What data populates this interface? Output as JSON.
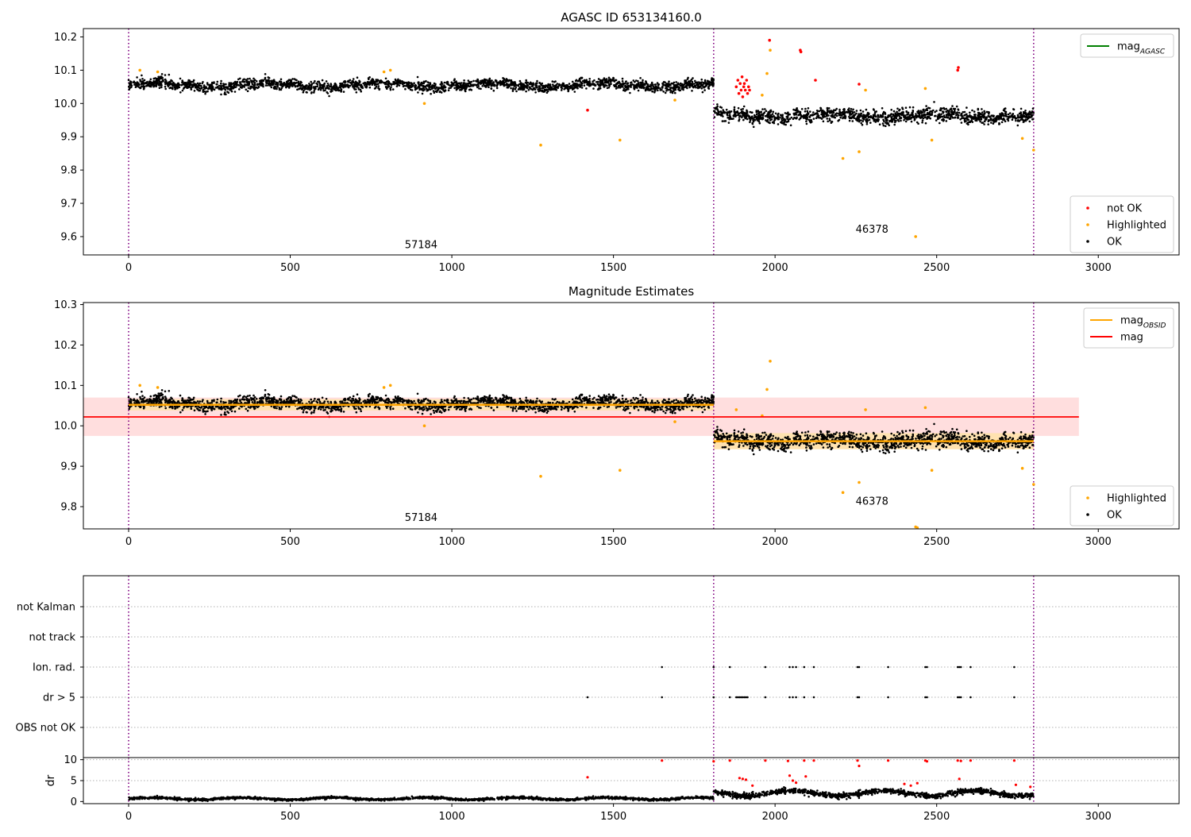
{
  "chart_data": [
    {
      "id": "agasc",
      "type": "scatter",
      "title": "AGASC ID 653134160.0",
      "xlim": [
        -140,
        3250
      ],
      "ylim": [
        9.545,
        10.225
      ],
      "xticks": [
        0,
        500,
        1000,
        1500,
        2000,
        2500,
        3000
      ],
      "yticks": [
        9.6,
        9.7,
        9.8,
        9.9,
        10.0,
        10.1,
        10.2
      ],
      "ytick_labels": [
        "9.6",
        "9.7",
        "9.8",
        "9.9",
        "10.0",
        "10.1",
        "10.2"
      ],
      "obs_boundaries": [
        0,
        1810,
        2800
      ],
      "obs_labels": [
        {
          "text": "57184",
          "x": 905,
          "y": 9.565
        },
        {
          "text": "46378",
          "x": 2300,
          "y": 9.612
        }
      ],
      "segments": [
        {
          "x0": 0,
          "x1": 1810,
          "mean": 10.055,
          "noise": 0.014
        },
        {
          "x0": 1810,
          "x1": 2800,
          "mean": 9.963,
          "noise": 0.018
        }
      ],
      "series": [
        {
          "name": "not OK",
          "color": "#ff0000",
          "points": [
            [
              1880,
              10.05
            ],
            [
              1885,
              10.07
            ],
            [
              1888,
              10.03
            ],
            [
              1892,
              10.06
            ],
            [
              1895,
              10.04
            ],
            [
              1898,
              10.08
            ],
            [
              1900,
              10.02
            ],
            [
              1903,
              10.05
            ],
            [
              1905,
              10.06
            ],
            [
              1908,
              10.04
            ],
            [
              1912,
              10.07
            ],
            [
              1915,
              10.03
            ],
            [
              1918,
              10.05
            ],
            [
              1921,
              10.04
            ],
            [
              1983,
              10.19
            ],
            [
              2078,
              10.16
            ],
            [
              2080,
              10.155
            ],
            [
              2125,
              10.07
            ],
            [
              2260,
              10.058
            ],
            [
              2565,
              10.1
            ],
            [
              2567,
              10.108
            ],
            [
              1420,
              9.98
            ]
          ]
        },
        {
          "name": "Highlighted",
          "color": "#ffa500",
          "points": [
            [
              35,
              10.1
            ],
            [
              90,
              10.095
            ],
            [
              790,
              10.095
            ],
            [
              810,
              10.1
            ],
            [
              915,
              10.0
            ],
            [
              1275,
              9.875
            ],
            [
              1520,
              9.89
            ],
            [
              1690,
              10.01
            ],
            [
              1960,
              10.025
            ],
            [
              1975,
              10.09
            ],
            [
              1985,
              10.16
            ],
            [
              2210,
              9.835
            ],
            [
              2260,
              9.855
            ],
            [
              2280,
              10.04
            ],
            [
              2435,
              9.6
            ],
            [
              2465,
              10.045
            ],
            [
              2485,
              9.89
            ],
            [
              2765,
              9.895
            ],
            [
              2800,
              9.86
            ]
          ]
        }
      ],
      "legends": [
        {
          "position": "upper right",
          "entries": [
            {
              "label": "mag",
              "subscript": "AGASC",
              "color": "#008000",
              "marker": "line"
            }
          ]
        },
        {
          "position": "lower right",
          "entries": [
            {
              "label": "not OK",
              "color": "#ff0000",
              "marker": "dot"
            },
            {
              "label": "Highlighted",
              "color": "#ffa500",
              "marker": "dot"
            },
            {
              "label": "OK",
              "color": "#000000",
              "marker": "dot"
            }
          ]
        }
      ]
    },
    {
      "id": "estimates",
      "type": "scatter",
      "title": "Magnitude Estimates",
      "xlim": [
        -140,
        3250
      ],
      "ylim": [
        9.745,
        10.305
      ],
      "xticks": [
        0,
        500,
        1000,
        1500,
        2000,
        2500,
        3000
      ],
      "yticks": [
        9.8,
        9.9,
        10.0,
        10.1,
        10.2,
        10.3
      ],
      "ytick_labels": [
        "9.8",
        "9.9",
        "10.0",
        "10.1",
        "10.2",
        "10.3"
      ],
      "obs_boundaries": [
        0,
        1810,
        2800
      ],
      "obs_labels": [
        {
          "text": "57184",
          "x": 905,
          "y": 9.765
        },
        {
          "text": "46378",
          "x": 2300,
          "y": 9.805
        }
      ],
      "mag": {
        "value": 10.022,
        "x0": -140,
        "x1": 2940,
        "band": [
          9.975,
          10.07
        ],
        "color": "#ff0000",
        "band_color": "#ffdede"
      },
      "mag_obsid": [
        {
          "x0": 0,
          "x1": 1810,
          "value": 10.052,
          "band": [
            10.038,
            10.066
          ]
        },
        {
          "x0": 1810,
          "x1": 2800,
          "value": 9.962,
          "band": [
            9.942,
            9.982
          ]
        }
      ],
      "segments": [
        {
          "x0": 0,
          "x1": 1810,
          "mean": 10.055,
          "noise": 0.014
        },
        {
          "x0": 1810,
          "x1": 2800,
          "mean": 9.963,
          "noise": 0.018
        }
      ],
      "series": [
        {
          "name": "Highlighted",
          "color": "#ffa500",
          "points": [
            [
              35,
              10.1
            ],
            [
              90,
              10.095
            ],
            [
              790,
              10.095
            ],
            [
              810,
              10.1
            ],
            [
              915,
              10.0
            ],
            [
              1275,
              9.875
            ],
            [
              1520,
              9.89
            ],
            [
              1690,
              10.01
            ],
            [
              1880,
              10.04
            ],
            [
              1960,
              10.025
            ],
            [
              1975,
              10.09
            ],
            [
              1985,
              10.16
            ],
            [
              2210,
              9.835
            ],
            [
              2260,
              9.86
            ],
            [
              2280,
              10.04
            ],
            [
              2435,
              9.75
            ],
            [
              2440,
              9.748
            ],
            [
              2465,
              10.045
            ],
            [
              2485,
              9.89
            ],
            [
              2765,
              9.895
            ],
            [
              2800,
              9.855
            ]
          ]
        }
      ],
      "legends": [
        {
          "position": "upper right",
          "entries": [
            {
              "label": "mag",
              "subscript": "OBSID",
              "color": "#ffa500",
              "marker": "line"
            },
            {
              "label": "mag",
              "color": "#ff0000",
              "marker": "line"
            }
          ]
        },
        {
          "position": "lower right",
          "entries": [
            {
              "label": "Highlighted",
              "color": "#ffa500",
              "marker": "dot"
            },
            {
              "label": "OK",
              "color": "#000000",
              "marker": "dot"
            }
          ]
        }
      ]
    },
    {
      "id": "flags",
      "type": "scatter",
      "xlim": [
        -140,
        3250
      ],
      "obs_boundaries": [
        0,
        1810,
        2800
      ],
      "rows": [
        "not Kalman",
        "not track",
        "Ion. rad.",
        "dr > 5",
        "OBS not OK"
      ],
      "flag_points": {
        "Ion. rad.": [
          1650,
          1810,
          1860,
          1970,
          2045,
          2055,
          2065,
          2090,
          2120,
          2255,
          2260,
          2350,
          2465,
          2470,
          2565,
          2570,
          2575,
          2605,
          2740
        ],
        "dr > 5": [
          1420,
          1650,
          1810,
          1860,
          1880,
          1885,
          1890,
          1895,
          1900,
          1905,
          1910,
          1915,
          1970,
          2045,
          2055,
          2065,
          2090,
          2120,
          2255,
          2260,
          2350,
          2465,
          2470,
          2565,
          2570,
          2575,
          2605,
          2740
        ]
      }
    },
    {
      "id": "dr",
      "type": "scatter",
      "ylabel": "dr",
      "xlim": [
        -140,
        3250
      ],
      "ylim": [
        -0.5,
        10.5
      ],
      "xticks": [
        0,
        500,
        1000,
        1500,
        2000,
        2500,
        3000
      ],
      "yticks": [
        0,
        5,
        10
      ],
      "obs_boundaries": [
        0,
        1810,
        2800
      ],
      "segments": [
        {
          "x0": 0,
          "x1": 1810,
          "base": 0.7,
          "noise": 0.35
        },
        {
          "x0": 1810,
          "x1": 2800,
          "base": 2.0,
          "noise": 0.8
        }
      ],
      "series": [
        {
          "name": "dr > 5",
          "color": "#ff0000",
          "points": [
            [
              1420,
              5.8
            ],
            [
              1650,
              9.8
            ],
            [
              1810,
              9.6
            ],
            [
              1860,
              9.8
            ],
            [
              1890,
              5.6
            ],
            [
              1900,
              5.4
            ],
            [
              1910,
              5.2
            ],
            [
              1930,
              3.8
            ],
            [
              1970,
              9.8
            ],
            [
              2040,
              9.7
            ],
            [
              2045,
              6.2
            ],
            [
              2055,
              5.0
            ],
            [
              2065,
              4.5
            ],
            [
              2090,
              9.8
            ],
            [
              2095,
              6.0
            ],
            [
              2120,
              9.8
            ],
            [
              2255,
              9.8
            ],
            [
              2260,
              8.5
            ],
            [
              2350,
              9.8
            ],
            [
              2400,
              4.2
            ],
            [
              2420,
              3.8
            ],
            [
              2440,
              4.4
            ],
            [
              2465,
              9.8
            ],
            [
              2470,
              9.6
            ],
            [
              2565,
              9.8
            ],
            [
              2570,
              5.4
            ],
            [
              2575,
              9.7
            ],
            [
              2605,
              9.8
            ],
            [
              2740,
              9.8
            ],
            [
              2745,
              4.0
            ],
            [
              2790,
              3.5
            ]
          ]
        }
      ]
    }
  ]
}
